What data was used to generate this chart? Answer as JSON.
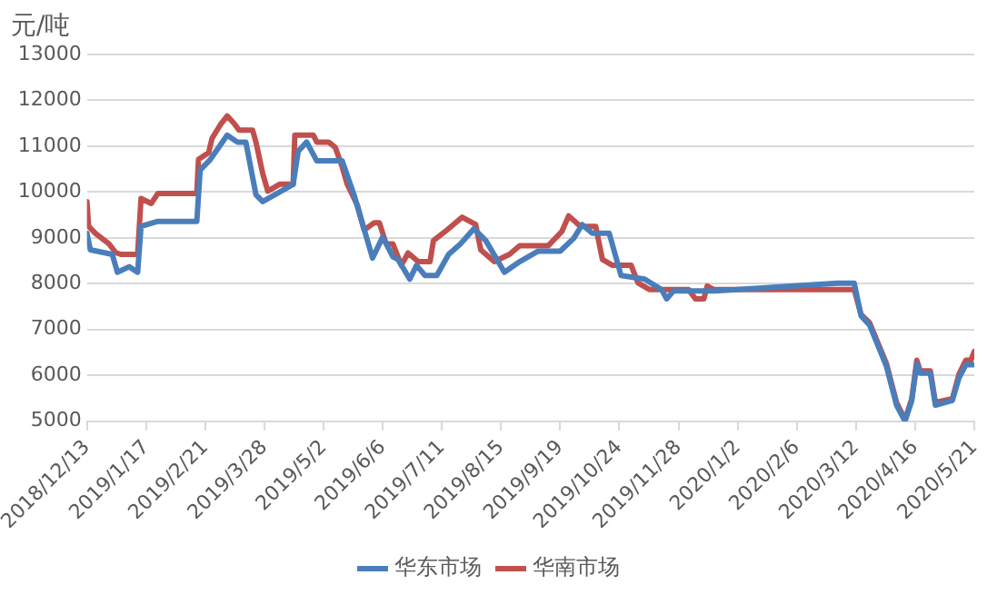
{
  "chart_data": {
    "type": "line",
    "ylabel": "元/吨",
    "xlim": [
      "2018-12-13",
      "2020-05-21"
    ],
    "ylim": [
      5000,
      13000
    ],
    "yticks": [
      5000,
      6000,
      7000,
      8000,
      9000,
      10000,
      11000,
      12000,
      13000
    ],
    "xticks": [
      {
        "value": "2018-12-13",
        "label": "2018/12/13"
      },
      {
        "value": "2019-01-17",
        "label": "2019/1/17"
      },
      {
        "value": "2019-02-21",
        "label": "2019/2/21"
      },
      {
        "value": "2019-03-28",
        "label": "2019/3/28"
      },
      {
        "value": "2019-05-02",
        "label": "2019/5/2"
      },
      {
        "value": "2019-06-06",
        "label": "2019/6/6"
      },
      {
        "value": "2019-07-11",
        "label": "2019/7/11"
      },
      {
        "value": "2019-08-15",
        "label": "2019/8/15"
      },
      {
        "value": "2019-09-19",
        "label": "2019/9/19"
      },
      {
        "value": "2019-10-24",
        "label": "2019/10/24"
      },
      {
        "value": "2019-11-28",
        "label": "2019/11/28"
      },
      {
        "value": "2020-01-02",
        "label": "2020/1/2"
      },
      {
        "value": "2020-02-06",
        "label": "2020/2/6"
      },
      {
        "value": "2020-03-12",
        "label": "2020/3/12"
      },
      {
        "value": "2020-04-16",
        "label": "2020/4/16"
      },
      {
        "value": "2020-05-21",
        "label": "2020/5/21"
      }
    ],
    "grid": "y",
    "legend": "bottom",
    "marker": "none",
    "line_style": "solid",
    "series": [
      {
        "name": "华东市场",
        "color": "#4a7ebb",
        "x": [
          "2018-12-13",
          "2018-12-15",
          "2018-12-28",
          "2018-12-31",
          "2019-01-07",
          "2019-01-12",
          "2019-01-14",
          "2019-01-24",
          "2019-02-16",
          "2019-02-18",
          "2019-02-24",
          "2019-03-06",
          "2019-03-12",
          "2019-03-17",
          "2019-03-23",
          "2019-03-27",
          "2019-04-07",
          "2019-04-14",
          "2019-04-17",
          "2019-04-22",
          "2019-04-28",
          "2019-05-13",
          "2019-05-20",
          "2019-05-31",
          "2019-06-06",
          "2019-06-12",
          "2019-06-15",
          "2019-06-22",
          "2019-06-26",
          "2019-07-01",
          "2019-07-08",
          "2019-07-15",
          "2019-07-22",
          "2019-07-30",
          "2019-08-06",
          "2019-08-17",
          "2019-08-26",
          "2019-09-06",
          "2019-09-19",
          "2019-09-27",
          "2019-10-02",
          "2019-10-08",
          "2019-10-18",
          "2019-10-25",
          "2019-11-08",
          "2019-11-18",
          "2019-11-21",
          "2019-11-25",
          "2019-12-20",
          "2020-03-01",
          "2020-03-11",
          "2020-03-15",
          "2020-03-20",
          "2020-03-30",
          "2020-04-05",
          "2020-04-10",
          "2020-04-14",
          "2020-04-17",
          "2020-04-19",
          "2020-04-25",
          "2020-04-28",
          "2020-05-08",
          "2020-05-12",
          "2020-05-16",
          "2020-05-21"
        ],
        "values": [
          9100,
          8740,
          8640,
          8250,
          8370,
          8250,
          9250,
          9360,
          9360,
          10480,
          10710,
          11240,
          11090,
          11090,
          9940,
          9790,
          10020,
          10170,
          10890,
          11090,
          10680,
          10680,
          9940,
          8560,
          9020,
          8590,
          8530,
          8100,
          8400,
          8180,
          8180,
          8640,
          8870,
          9200,
          8940,
          8250,
          8480,
          8710,
          8710,
          8990,
          9290,
          9100,
          9100,
          8180,
          8100,
          7870,
          7670,
          7840,
          7840,
          8010,
          8010,
          7300,
          7100,
          6200,
          5350,
          5000,
          5450,
          6250,
          6050,
          6050,
          5350,
          5450,
          5950,
          6230,
          6230
        ]
      },
      {
        "name": "华南市场",
        "color": "#c0504d",
        "x": [
          "2018-12-13",
          "2018-12-14",
          "2018-12-18",
          "2018-12-26",
          "2018-12-30",
          "2019-01-02",
          "2019-01-12",
          "2019-01-14",
          "2019-01-20",
          "2019-01-24",
          "2019-02-16",
          "2019-02-17",
          "2019-02-23",
          "2019-02-25",
          "2019-03-02",
          "2019-03-06",
          "2019-03-10",
          "2019-03-13",
          "2019-03-21",
          "2019-03-23",
          "2019-03-27",
          "2019-03-30",
          "2019-04-06",
          "2019-04-14",
          "2019-04-15",
          "2019-04-26",
          "2019-04-28",
          "2019-05-05",
          "2019-05-09",
          "2019-05-13",
          "2019-05-16",
          "2019-05-22",
          "2019-05-26",
          "2019-06-01",
          "2019-06-04",
          "2019-06-08",
          "2019-06-12",
          "2019-06-17",
          "2019-06-21",
          "2019-06-27",
          "2019-07-04",
          "2019-07-06",
          "2019-07-14",
          "2019-07-23",
          "2019-07-31",
          "2019-08-03",
          "2019-08-11",
          "2019-08-20",
          "2019-08-26",
          "2019-09-12",
          "2019-09-20",
          "2019-09-24",
          "2019-10-01",
          "2019-10-10",
          "2019-10-14",
          "2019-10-20",
          "2019-10-31",
          "2019-11-04",
          "2019-11-11",
          "2019-12-04",
          "2019-12-08",
          "2019-12-13",
          "2019-12-15",
          "2019-12-19",
          "2020-03-05",
          "2020-03-11",
          "2020-03-15",
          "2020-03-20",
          "2020-03-30",
          "2020-04-05",
          "2020-04-10",
          "2020-04-14",
          "2020-04-17",
          "2020-04-19",
          "2020-04-25",
          "2020-04-28",
          "2020-05-08",
          "2020-05-12",
          "2020-05-16",
          "2020-05-19",
          "2020-05-21"
        ],
        "values": [
          9790,
          9250,
          9100,
          8870,
          8680,
          8640,
          8640,
          9860,
          9750,
          9970,
          9970,
          10710,
          10860,
          11170,
          11470,
          11660,
          11500,
          11350,
          11350,
          11090,
          10400,
          10020,
          10170,
          10170,
          11240,
          11240,
          11090,
          11090,
          10970,
          10550,
          10170,
          9710,
          9170,
          9330,
          9330,
          8870,
          8870,
          8400,
          8670,
          8480,
          8480,
          8940,
          9170,
          9450,
          9290,
          8740,
          8480,
          8640,
          8830,
          8830,
          9140,
          9480,
          9250,
          9250,
          8530,
          8400,
          8400,
          8020,
          7870,
          7870,
          7670,
          7670,
          7950,
          7870,
          7870,
          7870,
          7330,
          7150,
          6260,
          5410,
          5030,
          5490,
          6330,
          6100,
          6100,
          5410,
          5490,
          6030,
          6330,
          6330,
          6520
        ]
      }
    ]
  }
}
